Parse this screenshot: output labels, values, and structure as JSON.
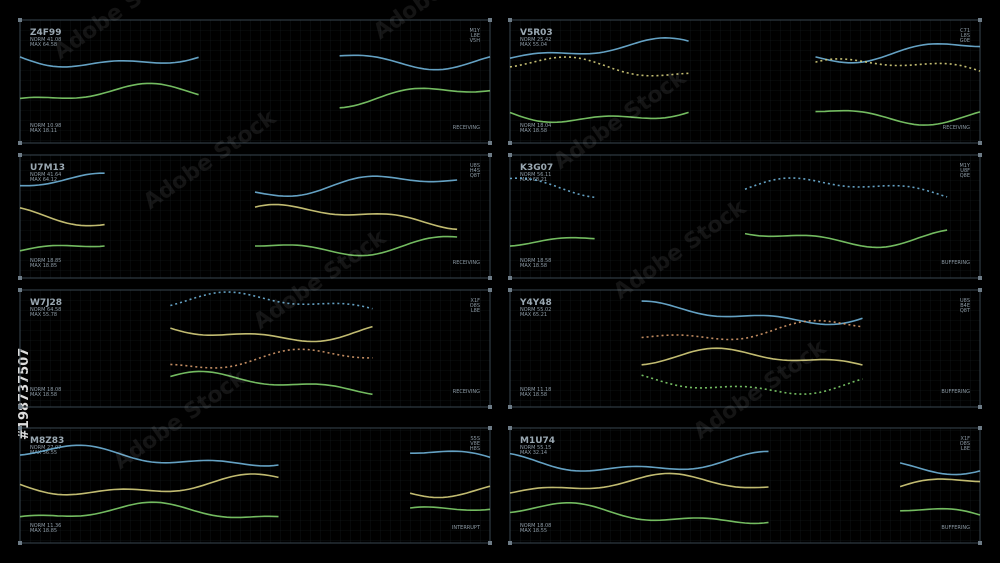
{
  "panels": [
    {
      "id": "Z4F99",
      "stats_top": [
        "NORM 41.08",
        "MAX 64.58"
      ],
      "codes": [
        "M1Y",
        "L8E",
        "V5H"
      ],
      "stats_bottom": [
        "NORM 10.98",
        "MAX 18.11"
      ],
      "status": "RECEIVING"
    },
    {
      "id": "V5R03",
      "stats_top": [
        "NORM 25.42",
        "MAX 55.04"
      ],
      "codes": [
        "C71",
        "L8S",
        "G0E"
      ],
      "stats_bottom": [
        "NORM 18.04",
        "MAX 18.58"
      ],
      "status": "RECEIVING"
    },
    {
      "id": "U7M13",
      "stats_top": [
        "NORM 41.64",
        "MAX 64.12"
      ],
      "codes": [
        "U8S",
        "H4S",
        "Q8T"
      ],
      "stats_bottom": [
        "NORM 18.85",
        "MAX 18.85"
      ],
      "status": "RECEIVING"
    },
    {
      "id": "K3G07",
      "stats_top": [
        "NORM 56.11",
        "MAX 68.21"
      ],
      "codes": [
        "M1Y",
        "U8F",
        "Q8E"
      ],
      "stats_bottom": [
        "NORM 18.58",
        "MAX 18.58"
      ],
      "status": "BUFFERING"
    },
    {
      "id": "W7J28",
      "stats_top": [
        "NORM 64.58",
        "MAX 55.78"
      ],
      "codes": [
        "X1F",
        "O8S",
        "L8E"
      ],
      "stats_bottom": [
        "NORM 18.08",
        "MAX 18.58"
      ],
      "status": "RECEIVING"
    },
    {
      "id": "Y4Y48",
      "stats_top": [
        "NORM 55.02",
        "MAX 65.21"
      ],
      "codes": [
        "U8S",
        "B4E",
        "Q8T"
      ],
      "stats_bottom": [
        "NORM 11.18",
        "MAX 18.58"
      ],
      "status": "BUFFERING"
    },
    {
      "id": "M8Z83",
      "stats_top": [
        "NORM 27.07",
        "MAX 56.55"
      ],
      "codes": [
        "S5S",
        "V8E",
        "H8S"
      ],
      "stats_bottom": [
        "NORM 11.36",
        "MAX 18.85"
      ],
      "status": "INTERRUPT"
    },
    {
      "id": "M1U74",
      "stats_top": [
        "NORM 55.15",
        "MAX 32.14"
      ],
      "codes": [
        "X1F",
        "O8S",
        "L8E"
      ],
      "stats_bottom": [
        "NORM 18.08",
        "MAX 18.55"
      ],
      "status": "BUFFERING"
    }
  ],
  "watermark": "Adobe Stock",
  "stock_id": "#198737507"
}
